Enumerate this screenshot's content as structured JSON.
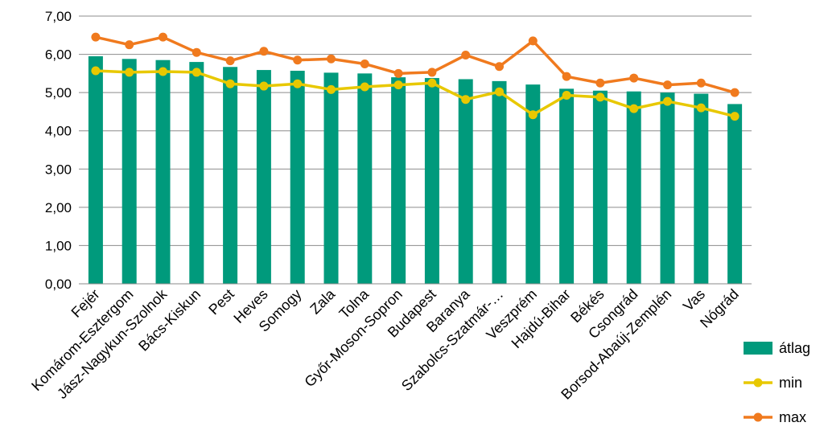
{
  "chart_data": {
    "type": "bar",
    "categories": [
      "Fejér",
      "Komárom-Esztergom",
      "Jász-Nagykun-Szolnok",
      "Bács-Kiskun",
      "Pest",
      "Heves",
      "Somogy",
      "Zala",
      "Tolna",
      "Győr-Moson-Sopron",
      "Budapest",
      "Baranya",
      "Szabolcs-Szatmár-…",
      "Veszprém",
      "Hajdú-Bihar",
      "Békés",
      "Csongrád",
      "Borsod-Abaúj-Zemplén",
      "Vas",
      "Nógrád"
    ],
    "series": [
      {
        "name": "átlag",
        "kind": "bar",
        "color": "#009A7C",
        "values": [
          5.95,
          5.88,
          5.85,
          5.8,
          5.67,
          5.59,
          5.57,
          5.52,
          5.5,
          5.4,
          5.38,
          5.35,
          5.3,
          5.21,
          5.1,
          5.05,
          5.03,
          5.0,
          4.97,
          4.7
        ]
      },
      {
        "name": "min",
        "kind": "line",
        "color": "#E8C800",
        "values": [
          5.57,
          5.53,
          5.55,
          5.53,
          5.23,
          5.17,
          5.23,
          5.08,
          5.15,
          5.2,
          5.25,
          4.82,
          5.02,
          4.42,
          4.93,
          4.88,
          4.58,
          4.77,
          4.6,
          4.38
        ]
      },
      {
        "name": "max",
        "kind": "line",
        "color": "#F07A1E",
        "values": [
          6.45,
          6.25,
          6.45,
          6.05,
          5.83,
          6.08,
          5.85,
          5.88,
          5.75,
          5.5,
          5.53,
          5.98,
          5.68,
          6.35,
          5.42,
          5.25,
          5.38,
          5.2,
          5.25,
          5.0
        ]
      }
    ],
    "y_tick_labels": [
      "0,00",
      "1,00",
      "2,00",
      "3,00",
      "4,00",
      "5,00",
      "6,00",
      "7,00"
    ],
    "ylim": [
      0,
      7
    ],
    "grid": true,
    "legend_position": "bottom-right",
    "title": "",
    "xlabel": "",
    "ylabel": ""
  }
}
